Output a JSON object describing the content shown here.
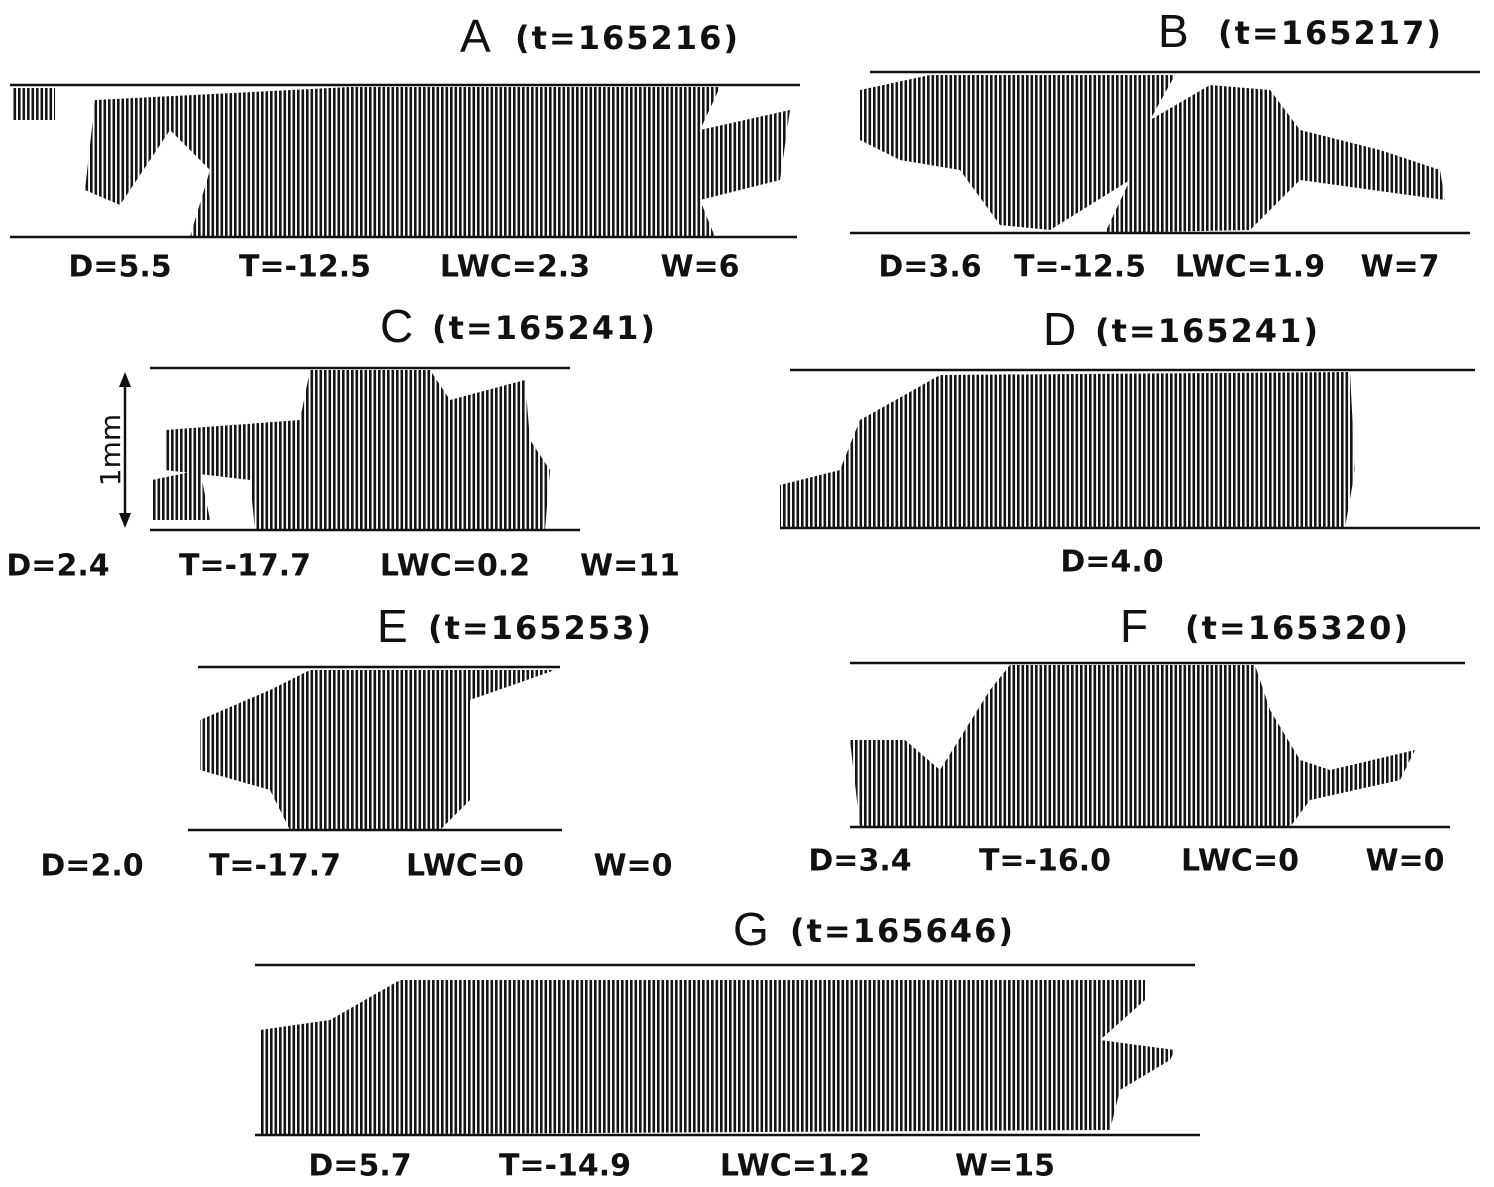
{
  "panels": [
    {
      "letter": "A",
      "time": "(t=165216)",
      "params": [
        "D=5.5",
        "T=-12.5",
        "LWC=2.3",
        "W=6"
      ]
    },
    {
      "letter": "B",
      "time": "(t=165217)",
      "params": [
        "D=3.6",
        "T=-12.5",
        "LWC=1.9",
        "W=7"
      ]
    },
    {
      "letter": "C",
      "time": "(t=165241)",
      "params": [
        "D=2.4",
        "T=-17.7",
        "LWC=0.2",
        "W=11"
      ],
      "scale": "1mm"
    },
    {
      "letter": "D",
      "time": "(t=165241)",
      "params": [
        "D=4.0"
      ]
    },
    {
      "letter": "E",
      "time": "(t=165253)",
      "params": [
        "D=2.0",
        "T=-17.7",
        "LWC=0",
        "W=0"
      ]
    },
    {
      "letter": "F",
      "time": "(t=165320)",
      "params": [
        "D=3.4",
        "T=-16.0",
        "LWC=0",
        "W=0"
      ]
    },
    {
      "letter": "G",
      "time": "(t=165646)",
      "params": [
        "D=5.7",
        "T=-14.9",
        "LWC=1.2",
        "W=15"
      ]
    }
  ]
}
